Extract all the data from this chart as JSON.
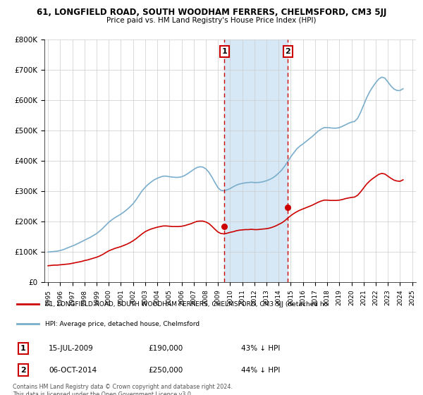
{
  "title": "61, LONGFIELD ROAD, SOUTH WOODHAM FERRERS, CHELMSFORD, CM3 5JJ",
  "subtitle": "Price paid vs. HM Land Registry's House Price Index (HPI)",
  "legend_line1": "61, LONGFIELD ROAD, SOUTH WOODHAM FERRERS, CHELMSFORD, CM3 5JJ (detached ho",
  "legend_line2": "HPI: Average price, detached house, Chelmsford",
  "annotation1_date": "15-JUL-2009",
  "annotation1_price": "£190,000",
  "annotation1_hpi": "43% ↓ HPI",
  "annotation2_date": "06-OCT-2014",
  "annotation2_price": "£250,000",
  "annotation2_hpi": "44% ↓ HPI",
  "footnote": "Contains HM Land Registry data © Crown copyright and database right 2024.\nThis data is licensed under the Open Government Licence v3.0.",
  "red_color": "#cc0000",
  "blue_color": "#7aaecc",
  "shade_color": "#d6e8f5",
  "vline_color": "#cc0000",
  "bg_color": "#ffffff",
  "plot_bg": "#ffffff",
  "grid_color": "#cccccc",
  "ylim": [
    0,
    800000
  ],
  "yticks": [
    0,
    100000,
    200000,
    300000,
    400000,
    500000,
    600000,
    700000,
    800000
  ],
  "ytick_labels": [
    "£0",
    "£100K",
    "£200K",
    "£300K",
    "£400K",
    "£500K",
    "£600K",
    "£700K",
    "£800K"
  ],
  "vline1_x": 2009.54,
  "vline2_x": 2014.76,
  "point1_x": 2009.54,
  "point1_y": 185000,
  "point2_x": 2014.76,
  "point2_y": 248000,
  "hpi_years": [
    1995.0,
    1995.25,
    1995.5,
    1995.75,
    1996.0,
    1996.25,
    1996.5,
    1996.75,
    1997.0,
    1997.25,
    1997.5,
    1997.75,
    1998.0,
    1998.25,
    1998.5,
    1998.75,
    1999.0,
    1999.25,
    1999.5,
    1999.75,
    2000.0,
    2000.25,
    2000.5,
    2000.75,
    2001.0,
    2001.25,
    2001.5,
    2001.75,
    2002.0,
    2002.25,
    2002.5,
    2002.75,
    2003.0,
    2003.25,
    2003.5,
    2003.75,
    2004.0,
    2004.25,
    2004.5,
    2004.75,
    2005.0,
    2005.25,
    2005.5,
    2005.75,
    2006.0,
    2006.25,
    2006.5,
    2006.75,
    2007.0,
    2007.25,
    2007.5,
    2007.75,
    2008.0,
    2008.25,
    2008.5,
    2008.75,
    2009.0,
    2009.25,
    2009.5,
    2009.75,
    2010.0,
    2010.25,
    2010.5,
    2010.75,
    2011.0,
    2011.25,
    2011.5,
    2011.75,
    2012.0,
    2012.25,
    2012.5,
    2012.75,
    2013.0,
    2013.25,
    2013.5,
    2013.75,
    2014.0,
    2014.25,
    2014.5,
    2014.75,
    2015.0,
    2015.25,
    2015.5,
    2015.75,
    2016.0,
    2016.25,
    2016.5,
    2016.75,
    2017.0,
    2017.25,
    2017.5,
    2017.75,
    2018.0,
    2018.25,
    2018.5,
    2018.75,
    2019.0,
    2019.25,
    2019.5,
    2019.75,
    2020.0,
    2020.25,
    2020.5,
    2020.75,
    2021.0,
    2021.25,
    2021.5,
    2021.75,
    2022.0,
    2022.25,
    2022.5,
    2022.75,
    2023.0,
    2023.25,
    2023.5,
    2023.75,
    2024.0,
    2024.25
  ],
  "hpi_values": [
    100000,
    101000,
    102000,
    103000,
    105000,
    108000,
    112000,
    116000,
    120000,
    124000,
    129000,
    134000,
    139000,
    144000,
    149000,
    155000,
    161000,
    169000,
    178000,
    188000,
    198000,
    206000,
    213000,
    219000,
    225000,
    232000,
    240000,
    249000,
    259000,
    272000,
    287000,
    302000,
    313000,
    323000,
    331000,
    338000,
    343000,
    347000,
    350000,
    350000,
    348000,
    347000,
    346000,
    346000,
    348000,
    352000,
    358000,
    365000,
    372000,
    378000,
    381000,
    380000,
    374000,
    363000,
    347000,
    329000,
    312000,
    303000,
    302000,
    305000,
    309000,
    315000,
    320000,
    324000,
    326000,
    328000,
    329000,
    330000,
    329000,
    329000,
    330000,
    332000,
    335000,
    339000,
    344000,
    351000,
    360000,
    370000,
    383000,
    398000,
    414000,
    427000,
    440000,
    449000,
    456000,
    464000,
    472000,
    480000,
    489000,
    498000,
    505000,
    510000,
    510000,
    509000,
    508000,
    508000,
    510000,
    514000,
    519000,
    524000,
    528000,
    530000,
    540000,
    560000,
    584000,
    608000,
    628000,
    644000,
    658000,
    670000,
    676000,
    673000,
    660000,
    647000,
    637000,
    632000,
    632000,
    638000
  ],
  "red_years": [
    1995.0,
    1995.25,
    1995.5,
    1995.75,
    1996.0,
    1996.25,
    1996.5,
    1996.75,
    1997.0,
    1997.25,
    1997.5,
    1997.75,
    1998.0,
    1998.25,
    1998.5,
    1998.75,
    1999.0,
    1999.25,
    1999.5,
    1999.75,
    2000.0,
    2000.25,
    2000.5,
    2000.75,
    2001.0,
    2001.25,
    2001.5,
    2001.75,
    2002.0,
    2002.25,
    2002.5,
    2002.75,
    2003.0,
    2003.25,
    2003.5,
    2003.75,
    2004.0,
    2004.25,
    2004.5,
    2004.75,
    2005.0,
    2005.25,
    2005.5,
    2005.75,
    2006.0,
    2006.25,
    2006.5,
    2006.75,
    2007.0,
    2007.25,
    2007.5,
    2007.75,
    2008.0,
    2008.25,
    2008.5,
    2008.75,
    2009.0,
    2009.25,
    2009.5,
    2009.75,
    2010.0,
    2010.25,
    2010.5,
    2010.75,
    2011.0,
    2011.25,
    2011.5,
    2011.75,
    2012.0,
    2012.25,
    2012.5,
    2012.75,
    2013.0,
    2013.25,
    2013.5,
    2013.75,
    2014.0,
    2014.25,
    2014.5,
    2014.75,
    2015.0,
    2015.25,
    2015.5,
    2015.75,
    2016.0,
    2016.25,
    2016.5,
    2016.75,
    2017.0,
    2017.25,
    2017.5,
    2017.75,
    2018.0,
    2018.25,
    2018.5,
    2018.75,
    2019.0,
    2019.25,
    2019.5,
    2019.75,
    2020.0,
    2020.25,
    2020.5,
    2020.75,
    2021.0,
    2021.25,
    2021.5,
    2021.75,
    2022.0,
    2022.25,
    2022.5,
    2022.75,
    2023.0,
    2023.25,
    2023.5,
    2023.75,
    2024.0,
    2024.25
  ],
  "red_values": [
    55000,
    56000,
    57000,
    57000,
    58000,
    59000,
    60000,
    61000,
    63000,
    65000,
    67000,
    69000,
    72000,
    74000,
    77000,
    80000,
    83000,
    87000,
    92000,
    98000,
    104000,
    108000,
    112000,
    115000,
    118000,
    122000,
    126000,
    131000,
    137000,
    144000,
    152000,
    160000,
    167000,
    172000,
    176000,
    179000,
    182000,
    184000,
    186000,
    186000,
    185000,
    184000,
    184000,
    184000,
    185000,
    187000,
    190000,
    193000,
    197000,
    201000,
    202000,
    202000,
    199000,
    194000,
    185000,
    175000,
    166000,
    161000,
    160000,
    162000,
    165000,
    167000,
    170000,
    172000,
    173000,
    174000,
    174000,
    175000,
    174000,
    174000,
    175000,
    176000,
    177000,
    179000,
    182000,
    186000,
    191000,
    196000,
    203000,
    212000,
    220000,
    227000,
    233000,
    238000,
    242000,
    246000,
    250000,
    254000,
    259000,
    264000,
    268000,
    271000,
    271000,
    270000,
    270000,
    270000,
    271000,
    273000,
    276000,
    278000,
    280000,
    281000,
    287000,
    298000,
    311000,
    324000,
    334000,
    342000,
    349000,
    356000,
    359000,
    357000,
    350000,
    343000,
    337000,
    334000,
    333000,
    338000
  ],
  "xlim_left": 1994.7,
  "xlim_right": 2025.3
}
